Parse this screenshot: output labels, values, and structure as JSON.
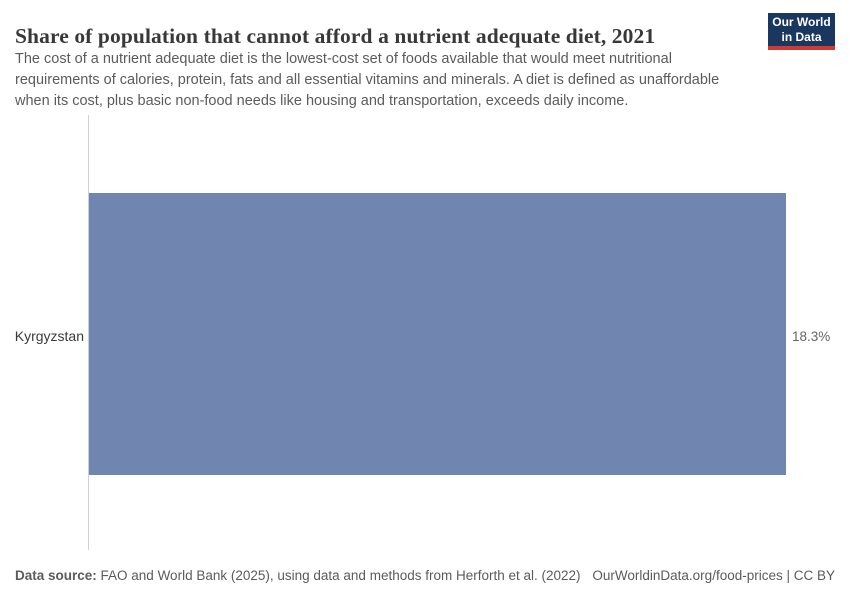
{
  "header": {
    "title": "Share of population that cannot afford a nutrient adequate diet, 2021",
    "subtitle_lines": [
      "The cost of a nutrient adequate diet is the lowest-cost set of foods available that would meet nutritional",
      "requirements of calories, protein, fats and all essential vitamins and minerals. A diet is defined as unaffordable",
      "when its cost, plus basic non-food needs like housing and transportation, exceeds daily income."
    ]
  },
  "logo": {
    "line1": "Our World",
    "line2": "in Data",
    "bg_color": "#19375f",
    "accent_color": "#cf3b32"
  },
  "chart_data": {
    "type": "bar",
    "orientation": "horizontal",
    "title": "Share of population that cannot afford a nutrient adequate diet, 2021",
    "categories": [
      "Kyrgyzstan"
    ],
    "values": [
      18.3
    ],
    "value_labels": [
      "18.3%"
    ],
    "unit": "%",
    "xlim": [
      0,
      18.3
    ],
    "grid": false,
    "legend": false,
    "bar_color": "#7086b0",
    "axis_color": "#d0d0d0"
  },
  "footer": {
    "datasource_label": "Data source:",
    "datasource_text": " FAO and World Bank (2025), using data and methods from Herforth et al. (2022)",
    "right_text": "OurWorldinData.org/food-prices | CC BY"
  }
}
